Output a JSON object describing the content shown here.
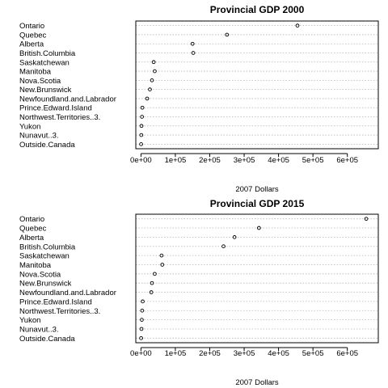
{
  "chart_data": [
    {
      "type": "scatter",
      "title": "Provincial GDP 2000",
      "xlabel": "2007 Dollars",
      "ylabel": "",
      "xlim": [
        -15000,
        690000
      ],
      "xticks": [
        0,
        100000,
        200000,
        300000,
        400000,
        500000,
        600000
      ],
      "xtick_labels": [
        "0e+00",
        "1e+05",
        "2e+05",
        "3e+05",
        "4e+05",
        "5e+05",
        "6e+05"
      ],
      "grid": "dotted horizontal",
      "legend": "none",
      "categories": [
        "Ontario",
        "Quebec",
        "Alberta",
        "British.Columbia",
        "Saskatchewan",
        "Manitoba",
        "Nova.Scotia",
        "New.Brunswick",
        "Newfoundland.and.Labrador",
        "Prince.Edward.Island",
        "Northwest.Territories..3.",
        "Yukon",
        "Nunavut..3.",
        "Outside.Canada"
      ],
      "values": [
        455000,
        250000,
        150000,
        152000,
        37000,
        40000,
        32000,
        26000,
        18000,
        4000,
        3000,
        1500,
        1000,
        500
      ]
    },
    {
      "type": "scatter",
      "title": "Provincial GDP 2015",
      "xlabel": "2007 Dollars",
      "ylabel": "",
      "xlim": [
        -15000,
        690000
      ],
      "xticks": [
        0,
        100000,
        200000,
        300000,
        400000,
        500000,
        600000
      ],
      "xtick_labels": [
        "0e+00",
        "1e+05",
        "2e+05",
        "3e+05",
        "4e+05",
        "5e+05",
        "6e+05"
      ],
      "grid": "dotted horizontal",
      "legend": "none",
      "categories": [
        "Ontario",
        "Quebec",
        "Alberta",
        "British.Columbia",
        "Saskatchewan",
        "Manitoba",
        "Nova.Scotia",
        "New.Brunswick",
        "Newfoundland.and.Labrador",
        "Prince.Edward.Island",
        "Northwest.Territories..3.",
        "Yukon",
        "Nunavut..3.",
        "Outside.Canada"
      ],
      "values": [
        655000,
        343000,
        272000,
        240000,
        60000,
        62000,
        40000,
        32000,
        30000,
        5000,
        3500,
        2500,
        1500,
        500
      ]
    }
  ]
}
